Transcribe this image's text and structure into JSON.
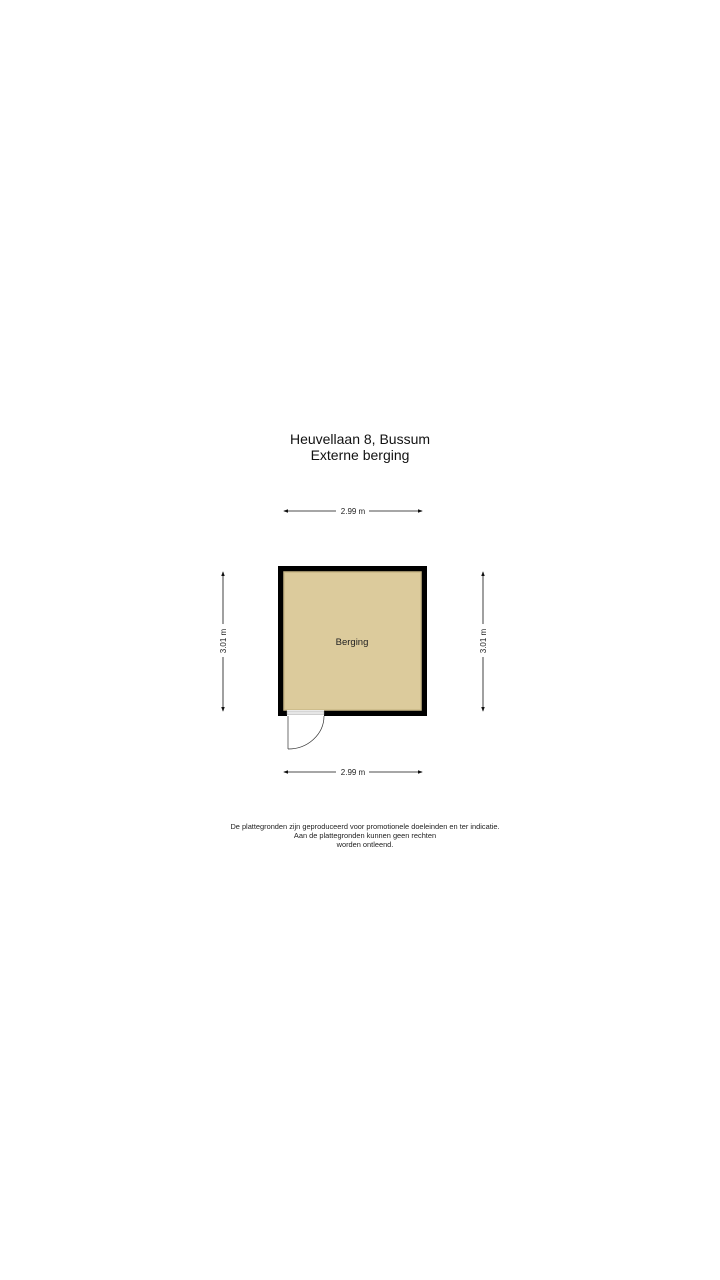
{
  "header": {
    "address": "Heuvellaan 8, Bussum",
    "subtitle": "Externe berging"
  },
  "floorplan": {
    "room_label": "Berging",
    "dimensions": {
      "top": "2.99 m",
      "bottom": "2.99 m",
      "left": "3.01 m",
      "right": "3.01 m"
    },
    "colors": {
      "wall": "#000000",
      "floor": "#dccb9c",
      "floor_edge": "#c9b887"
    }
  },
  "disclaimer": {
    "line1": "De plattegronden zijn geproduceerd voor promotionele doeleinden en ter indicatie.",
    "line2": "Aan de plattegronden kunnen geen rechten",
    "line3": "worden ontleend."
  }
}
